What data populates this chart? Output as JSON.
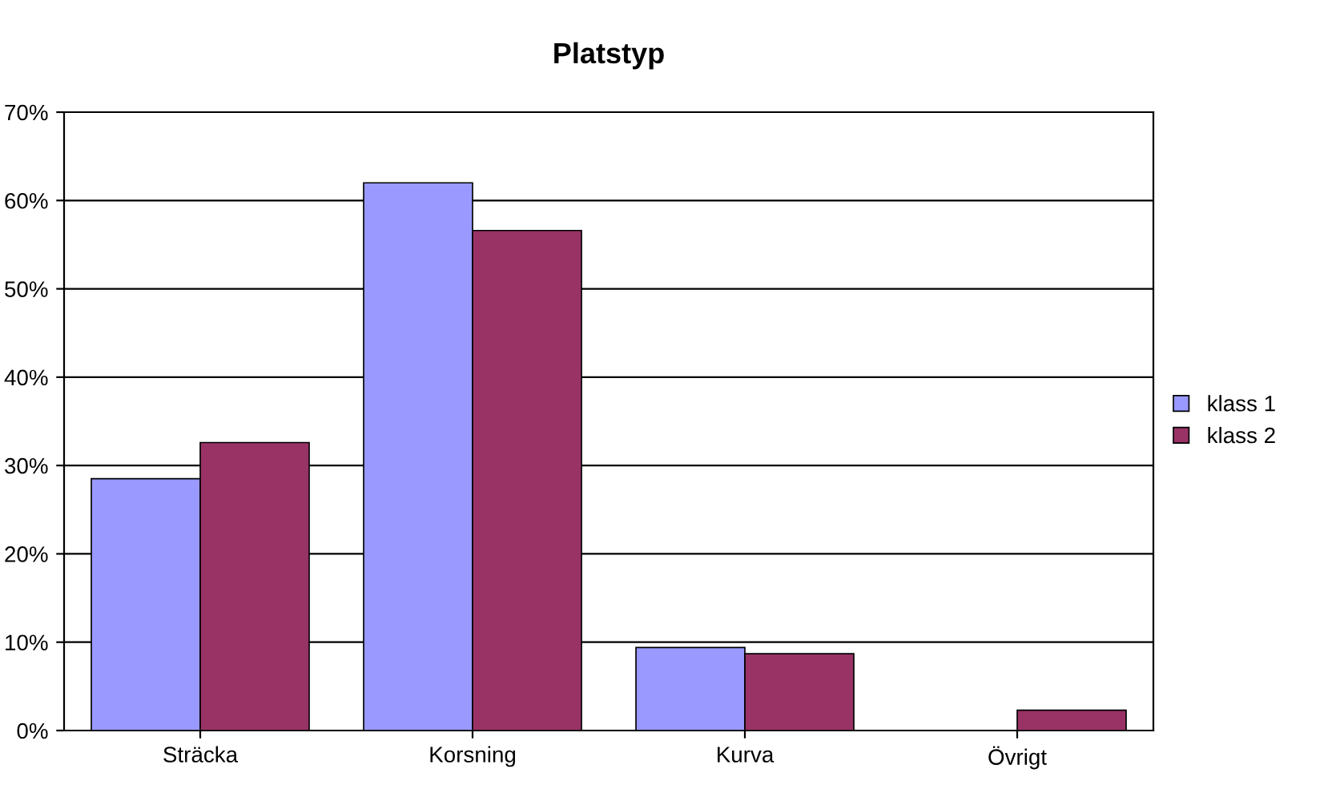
{
  "chart_data": {
    "type": "bar",
    "title": "Platstyp",
    "categories": [
      "Sträcka",
      "Korsning",
      "Kurva",
      "Övrigt"
    ],
    "series": [
      {
        "name": "klass 1",
        "color": "#9999ff",
        "values": [
          28.5,
          62,
          9.4,
          0
        ]
      },
      {
        "name": "klass 2",
        "color": "#993366",
        "values": [
          32.6,
          56.6,
          8.7,
          2.3
        ]
      }
    ],
    "ylim": [
      0,
      70
    ],
    "yticks": [
      {
        "value": 0,
        "label": "0%"
      },
      {
        "value": 10,
        "label": "10%"
      },
      {
        "value": 20,
        "label": "20%"
      },
      {
        "value": 30,
        "label": "30%"
      },
      {
        "value": 40,
        "label": "40%"
      },
      {
        "value": 50,
        "label": "50%"
      },
      {
        "value": 60,
        "label": "60%"
      },
      {
        "value": 70,
        "label": "70%"
      }
    ],
    "grid": "y",
    "legend": "right"
  }
}
